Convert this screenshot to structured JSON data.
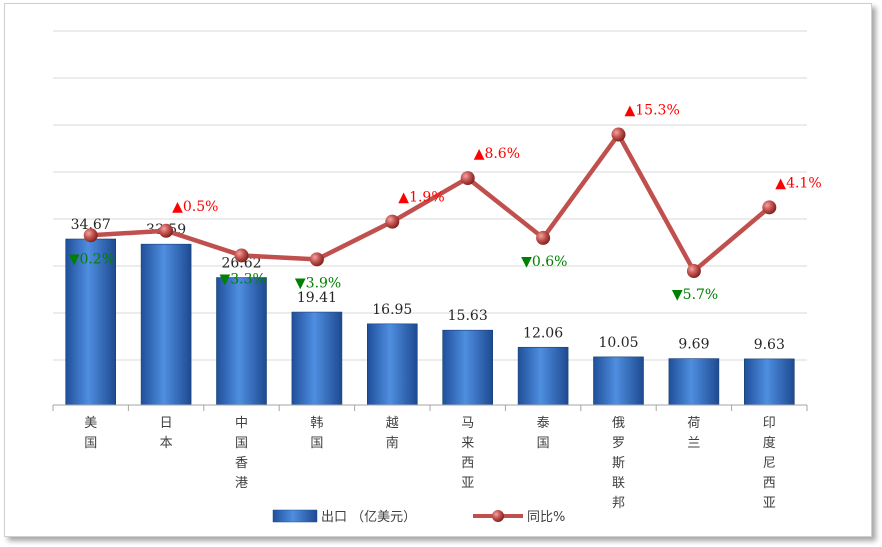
{
  "chart_data": {
    "type": "bar",
    "categories": [
      "美国",
      "日本",
      "中国香港",
      "韩国",
      "越南",
      "马来西亚",
      "泰国",
      "俄罗斯联邦",
      "荷兰",
      "印度尼西亚"
    ],
    "series": [
      {
        "name": "出口 （亿美元）",
        "type": "bar",
        "values": [
          34.67,
          33.59,
          26.62,
          19.41,
          16.95,
          15.63,
          12.06,
          10.05,
          9.69,
          9.63
        ],
        "labels": [
          "34.67",
          "33.59",
          "26.62",
          "19.41",
          "16.95",
          "15.63",
          "12.06",
          "10.05",
          "9.69",
          "9.63"
        ]
      },
      {
        "name": "同比%",
        "type": "line",
        "values": [
          -0.2,
          0.5,
          -3.3,
          -3.9,
          1.9,
          8.6,
          -0.6,
          15.3,
          -5.7,
          4.1
        ],
        "labels": [
          "▼0.2%",
          "▲0.5%",
          "▼3.3%",
          "▼3.9%",
          "▲1.9%",
          "▲8.6%",
          "▼0.6%",
          "▲15.3%",
          "▼5.7%",
          "▲4.1%"
        ]
      }
    ],
    "grid": true,
    "legend": "bottom",
    "colors": {
      "bar": "#3a72c4",
      "line": "#c0504d",
      "up": "#ff0000",
      "down": "#008000"
    }
  }
}
